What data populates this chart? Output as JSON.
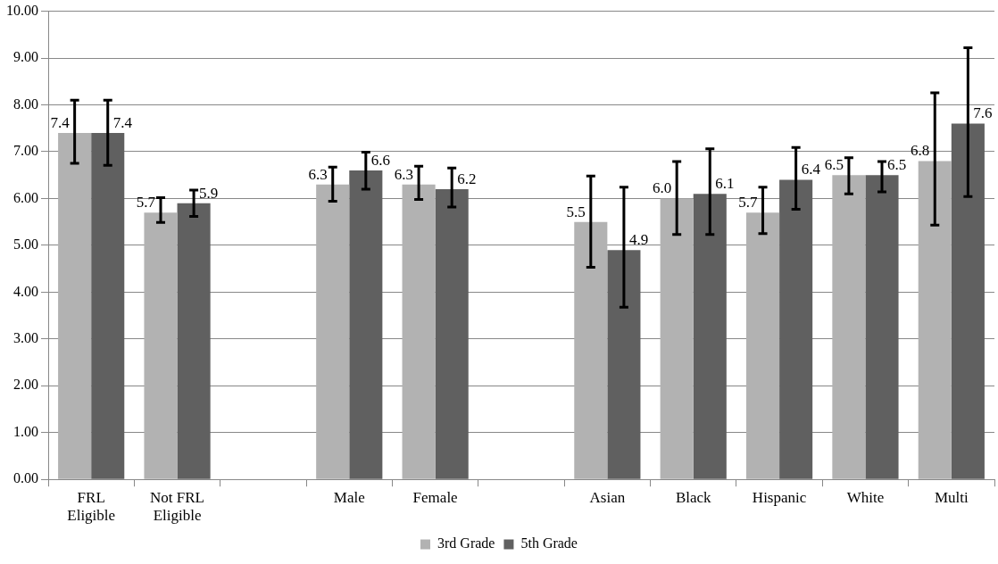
{
  "chart_data": {
    "type": "bar",
    "categories": [
      "FRL Eligible",
      "Not FRL Eligible",
      null,
      "Male",
      "Female",
      null,
      "Asian",
      "Black",
      "Hispanic",
      "White",
      "Multi"
    ],
    "series": [
      {
        "name": "3rd Grade",
        "color": "#b2b2b2",
        "values": [
          7.4,
          5.7,
          null,
          6.3,
          6.3,
          null,
          5.5,
          6.0,
          5.7,
          6.5,
          6.8
        ],
        "value_labels": [
          "7.4",
          "5.7",
          null,
          "6.3",
          "6.3",
          null,
          "5.5",
          "6.0",
          "5.7",
          "6.5",
          "6.8"
        ],
        "errors": [
          [
            6.75,
            8.1
          ],
          [
            5.49,
            6.02
          ],
          null,
          [
            5.94,
            6.67
          ],
          [
            5.98,
            6.69
          ],
          null,
          [
            4.53,
            6.48
          ],
          [
            5.23,
            6.79
          ],
          [
            5.25,
            6.24
          ],
          [
            6.1,
            6.87
          ],
          [
            5.43,
            8.26
          ]
        ]
      },
      {
        "name": "5th Grade",
        "color": "#606060",
        "values": [
          7.4,
          5.9,
          null,
          6.6,
          6.2,
          null,
          4.9,
          6.1,
          6.4,
          6.5,
          7.6
        ],
        "value_labels": [
          "7.4",
          "5.9",
          null,
          "6.6",
          "6.2",
          null,
          "4.9",
          "6.1",
          "6.4",
          "6.5",
          "7.6"
        ],
        "errors": [
          [
            6.71,
            8.1
          ],
          [
            5.62,
            6.18
          ],
          null,
          [
            6.2,
            6.99
          ],
          [
            5.82,
            6.65
          ],
          null,
          [
            3.68,
            6.24
          ],
          [
            5.23,
            7.06
          ],
          [
            5.77,
            7.09
          ],
          [
            6.14,
            6.79
          ],
          [
            6.04,
            9.22
          ]
        ]
      }
    ],
    "ylim": [
      0,
      10
    ],
    "yticks": [
      {
        "value": 0,
        "label": "0.00"
      },
      {
        "value": 1,
        "label": "1.00"
      },
      {
        "value": 2,
        "label": "2.00"
      },
      {
        "value": 3,
        "label": "3.00"
      },
      {
        "value": 4,
        "label": "4.00"
      },
      {
        "value": 5,
        "label": "5.00"
      },
      {
        "value": 6,
        "label": "6.00"
      },
      {
        "value": 7,
        "label": "7.00"
      },
      {
        "value": 8,
        "label": "8.00"
      },
      {
        "value": 9,
        "label": "9.00"
      },
      {
        "value": 10,
        "label": "10.00"
      }
    ],
    "grid": "y",
    "legend": "bottom"
  }
}
